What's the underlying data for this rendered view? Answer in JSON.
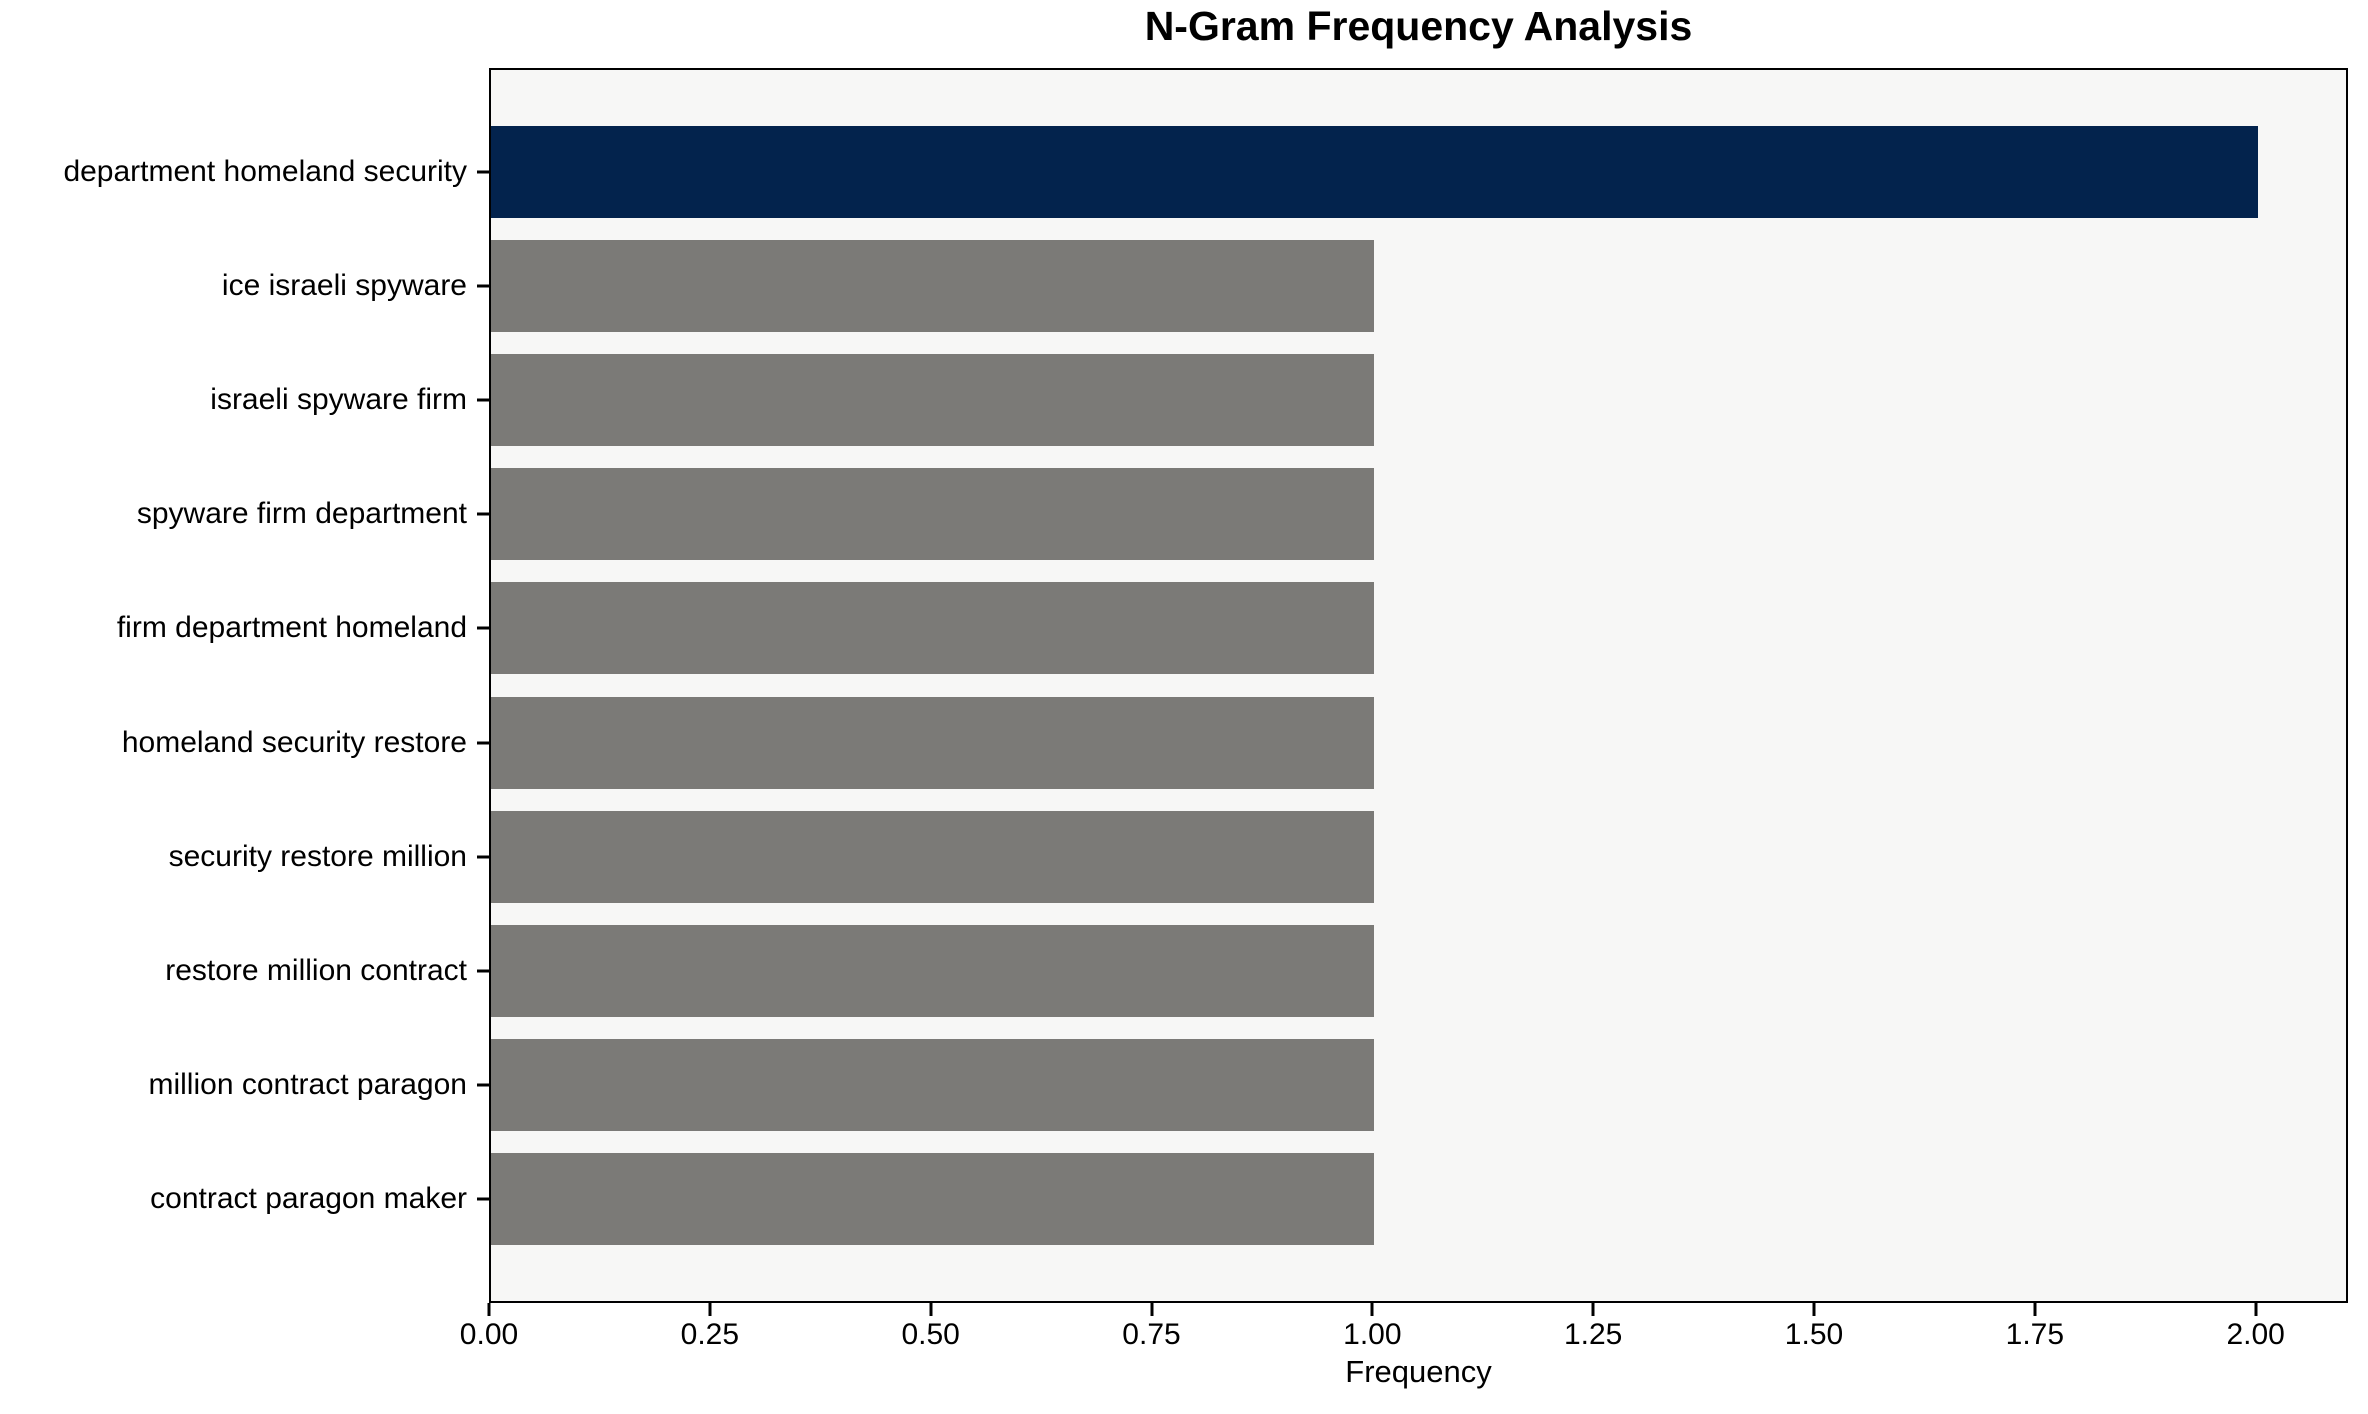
{
  "chart_data": {
    "type": "bar",
    "orientation": "horizontal",
    "title": "N-Gram Frequency Analysis",
    "xlabel": "Frequency",
    "ylabel": "",
    "categories": [
      "department homeland security",
      "ice israeli spyware",
      "israeli spyware firm",
      "spyware firm department",
      "firm department homeland",
      "homeland security restore",
      "security restore million",
      "restore million contract",
      "million contract paragon",
      "contract paragon maker"
    ],
    "values": [
      2,
      1,
      1,
      1,
      1,
      1,
      1,
      1,
      1,
      1
    ],
    "bar_colors": [
      "#03234d",
      "#7b7a77",
      "#7b7a77",
      "#7b7a77",
      "#7b7a77",
      "#7b7a77",
      "#7b7a77",
      "#7b7a77",
      "#7b7a77",
      "#7b7a77"
    ],
    "xlim": [
      0,
      2.1
    ],
    "xticks": [
      {
        "value": 0.0,
        "label": "0.00"
      },
      {
        "value": 0.25,
        "label": "0.25"
      },
      {
        "value": 0.5,
        "label": "0.50"
      },
      {
        "value": 0.75,
        "label": "0.75"
      },
      {
        "value": 1.0,
        "label": "1.00"
      },
      {
        "value": 1.25,
        "label": "1.25"
      },
      {
        "value": 1.5,
        "label": "1.50"
      },
      {
        "value": 1.75,
        "label": "1.75"
      },
      {
        "value": 2.0,
        "label": "2.00"
      }
    ],
    "grid": false,
    "legend": null,
    "plot_background": "#f7f7f6",
    "figure_background": "#ffffff",
    "spine_color": "#000000",
    "text_color": "#000000"
  }
}
